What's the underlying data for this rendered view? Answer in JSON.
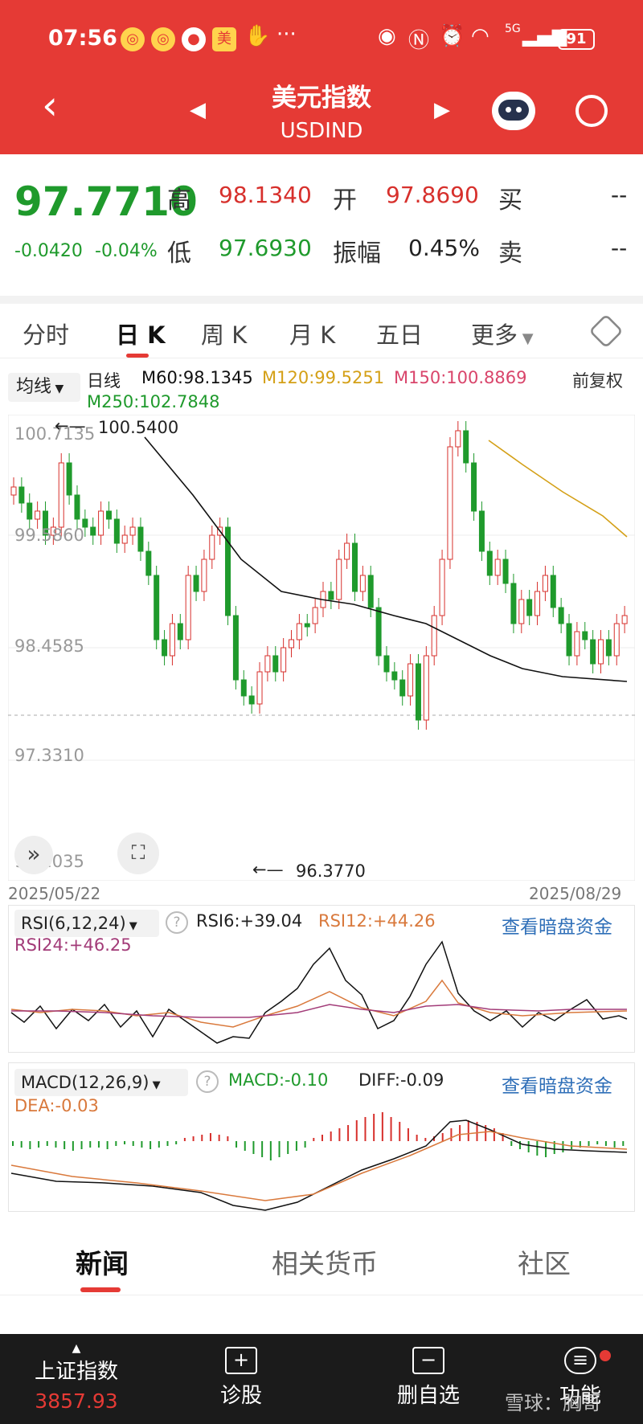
{
  "status_bar": {
    "time": "07:56",
    "network": "5G",
    "battery": "91"
  },
  "nav": {
    "title": "美元指数",
    "subtitle": "USDIND"
  },
  "quote": {
    "price": "97.7710",
    "change": "-0.0420",
    "change_pct": "-0.04%",
    "high_label": "高",
    "high": "98.1340",
    "open_label": "开",
    "open": "97.8690",
    "buy_label": "买",
    "buy": "--",
    "low_label": "低",
    "low": "97.6930",
    "amp_label": "振幅",
    "amp": "0.45%",
    "sell_label": "卖",
    "sell": "--"
  },
  "tabs": [
    "分时",
    "日 K",
    "周 K",
    "月 K",
    "五日",
    "更多"
  ],
  "ma_bar": {
    "selector": "均线",
    "line_label": "日线",
    "m60": "M60:98.1345",
    "m120": "M120:99.5251",
    "m150": "M150:100.8869",
    "m250": "M250:102.7848",
    "adjust": "前复权"
  },
  "kchart": {
    "y_labels": [
      "100.7135",
      "99.5860",
      "98.4585",
      "97.3310",
      "96.2035"
    ],
    "max_mark": "100.5400",
    "min_mark": "96.3770",
    "date_start": "2025/05/22",
    "date_end": "2025/08/29"
  },
  "rsi": {
    "selector": "RSI(6,12,24)",
    "rsi6": "RSI6:+39.04",
    "rsi12": "RSI12:+44.26",
    "rsi24": "RSI24:+46.25",
    "link": "查看暗盘资金"
  },
  "macd": {
    "selector": "MACD(12,26,9)",
    "macd": "MACD:-0.10",
    "diff": "DIFF:-0.09",
    "dea": "DEA:-0.03",
    "link": "查看暗盘资金"
  },
  "bottom_tabs": [
    "新闻",
    "相关货币",
    "社区"
  ],
  "footer": {
    "index_name": "上证指数",
    "index_value": "3857.93",
    "diagnose": "诊股",
    "remove_watch": "删自选",
    "features": "功能",
    "watermark": "雪球：胸哥"
  },
  "colors": {
    "brand": "#e53a35",
    "up": "#d7302c",
    "down": "#1f9a2c",
    "m120": "#d4a017",
    "m150": "#d9456b"
  }
}
